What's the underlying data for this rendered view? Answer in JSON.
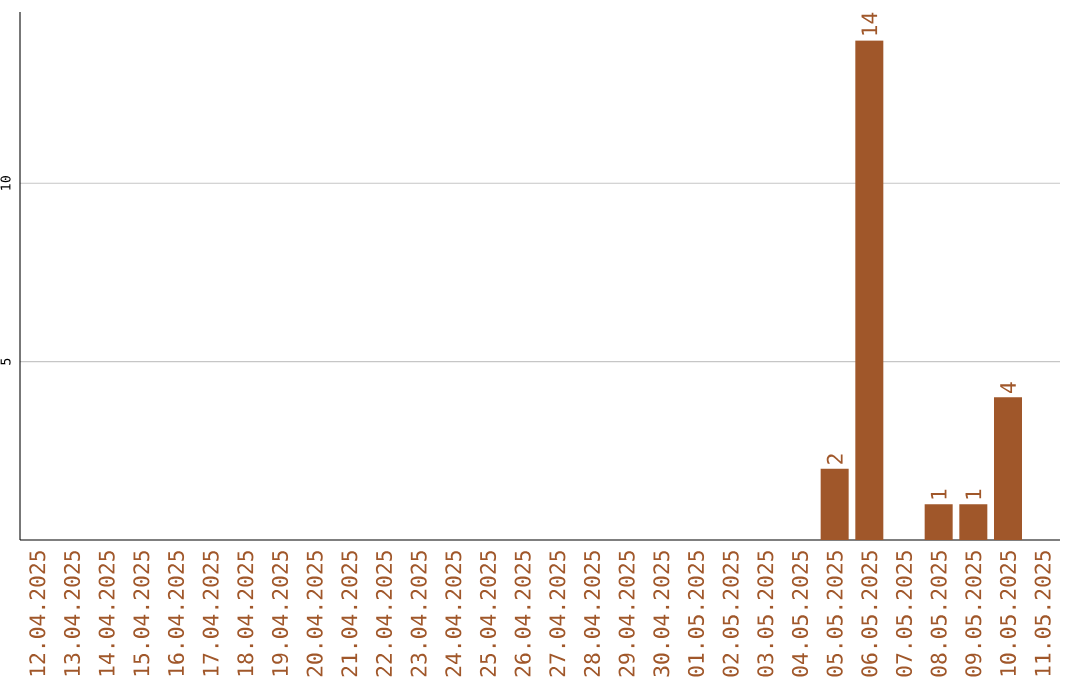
{
  "chart_data": {
    "type": "bar",
    "categories": [
      "12.04.2025",
      "13.04.2025",
      "14.04.2025",
      "15.04.2025",
      "16.04.2025",
      "17.04.2025",
      "18.04.2025",
      "19.04.2025",
      "20.04.2025",
      "21.04.2025",
      "22.04.2025",
      "23.04.2025",
      "24.04.2025",
      "25.04.2025",
      "26.04.2025",
      "27.04.2025",
      "28.04.2025",
      "29.04.2025",
      "30.04.2025",
      "01.05.2025",
      "02.05.2025",
      "03.05.2025",
      "04.05.2025",
      "05.05.2025",
      "06.05.2025",
      "07.05.2025",
      "08.05.2025",
      "09.05.2025",
      "10.05.2025",
      "11.05.2025"
    ],
    "values": [
      0,
      0,
      0,
      0,
      0,
      0,
      0,
      0,
      0,
      0,
      0,
      0,
      0,
      0,
      0,
      0,
      0,
      0,
      0,
      0,
      0,
      0,
      0,
      2,
      14,
      0,
      1,
      1,
      4,
      0
    ],
    "value_labels": [
      null,
      null,
      null,
      null,
      null,
      null,
      null,
      null,
      null,
      null,
      null,
      null,
      null,
      null,
      null,
      null,
      null,
      null,
      null,
      null,
      null,
      null,
      null,
      "2",
      "14",
      null,
      "1",
      "1",
      "4",
      null
    ],
    "color": "#a0572a",
    "ylim": [
      0,
      14.8
    ],
    "yticks": [
      5,
      10
    ],
    "grid": "y"
  }
}
